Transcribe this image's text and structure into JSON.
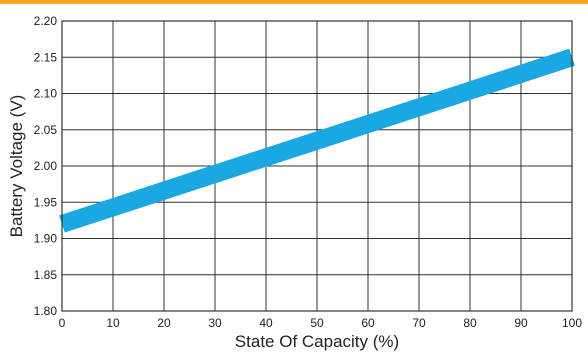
{
  "colors": {
    "accent_bar": "#f7a823",
    "line": "#1aa7e2",
    "grid": "#333333"
  },
  "chart_data": {
    "type": "line",
    "xlabel": "State Of Capacity (%)",
    "ylabel": "Battery Voltage (V)",
    "xlim": [
      0,
      100
    ],
    "ylim": [
      1.8,
      2.2
    ],
    "x_ticks": [
      "0",
      "10",
      "20",
      "30",
      "40",
      "50",
      "60",
      "70",
      "80",
      "90",
      "100"
    ],
    "y_ticks": [
      "1.80",
      "1.85",
      "1.90",
      "1.95",
      "2.00",
      "2.05",
      "2.10",
      "2.15",
      "2.20"
    ],
    "grid": true,
    "series": [
      {
        "x": [
          0,
          100
        ],
        "y": [
          1.92,
          2.15
        ]
      }
    ]
  }
}
